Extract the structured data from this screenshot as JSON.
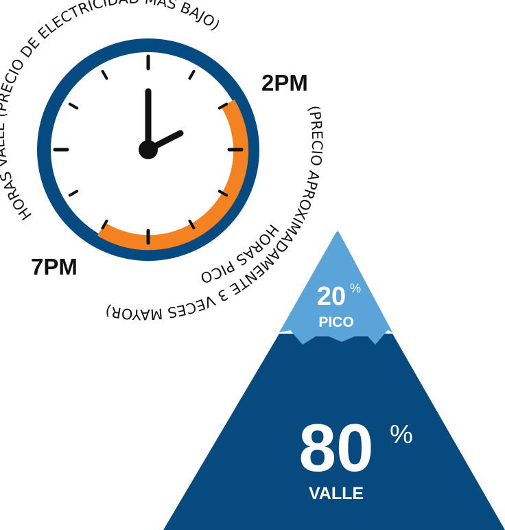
{
  "clock": {
    "offpeak_text": "HORAS VALLE (PRECIO DE ELECTRICIDAD MÁS BAJO)",
    "peak_text_line1": "HORAS PICO",
    "peak_text_line2": "(PRECIO APROXIMADAMENTE 3 VECES MAYOR)",
    "label_2pm": "2PM",
    "label_7pm": "7PM",
    "colors": {
      "ring": "#054a80",
      "peak_arc": "#f58220",
      "hands": "#111111"
    }
  },
  "mountain": {
    "peak_percent": "20",
    "peak_percent_sign": "%",
    "peak_label": "PICO",
    "offpeak_percent": "80",
    "offpeak_percent_sign": "%",
    "offpeak_label": "VALLE",
    "colors": {
      "peak": "#5ba4d9",
      "offpeak": "#064a7f"
    }
  }
}
